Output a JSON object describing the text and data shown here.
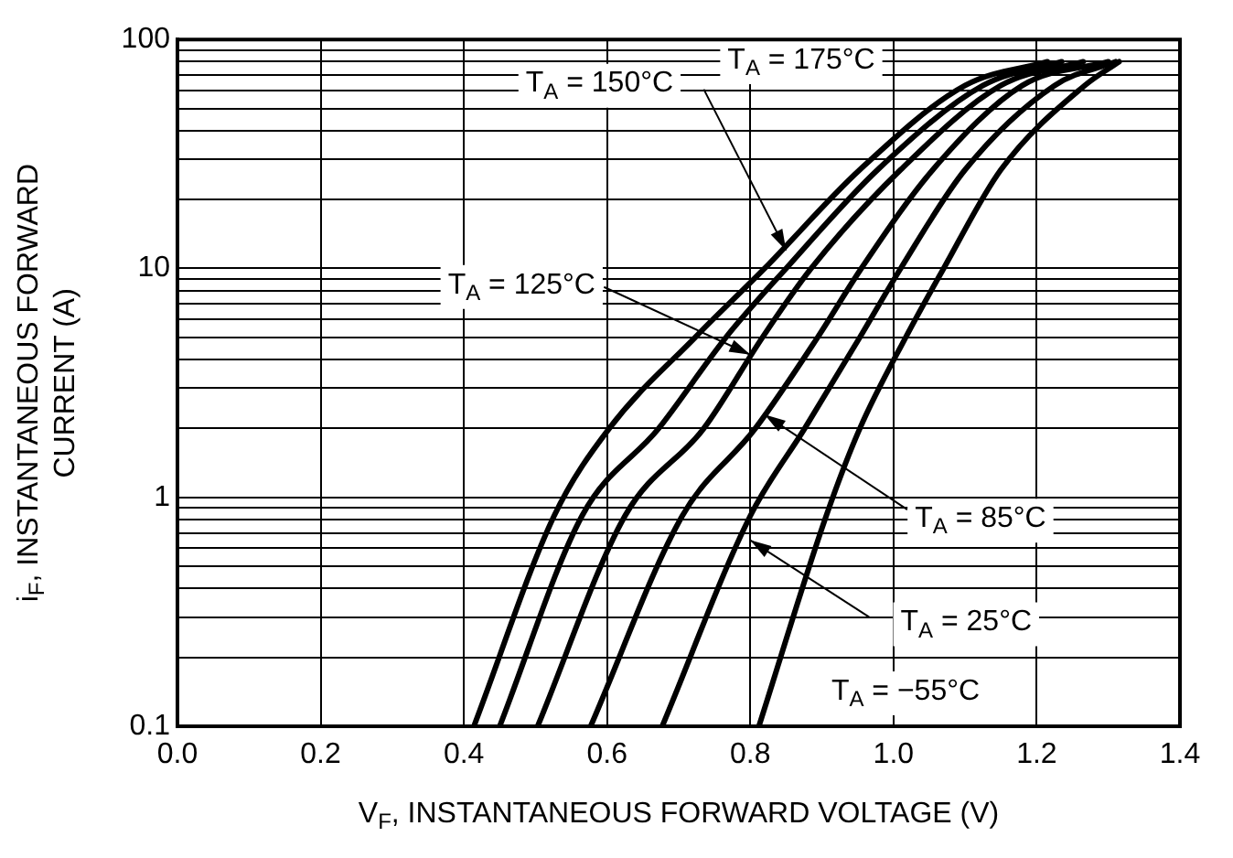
{
  "chart_data": {
    "type": "line",
    "xlabel": "V$_{F}$, INSTANTANEOUS FORWARD VOLTAGE (V)",
    "ylabel": "i$_{F}$, INSTANTANEOUS FORWARD CURRENT (A)",
    "log": "y",
    "grid": true,
    "legend": false,
    "marker": "none",
    "line_style": "solid",
    "xlim": [
      0,
      1.4
    ],
    "ylim": [
      0.1,
      100
    ],
    "xticks": [
      {
        "value": 0,
        "label": "0.0"
      },
      0.2,
      0.4,
      0.6,
      0.8,
      {
        "value": 1,
        "label": "1.0"
      },
      1.2,
      1.4
    ],
    "yticks": [
      0.1,
      {
        "value": 0.2,
        "label": null
      },
      {
        "value": 0.3,
        "label": null
      },
      {
        "value": 0.4,
        "label": null
      },
      {
        "value": 0.5,
        "label": null
      },
      {
        "value": 0.6,
        "label": null
      },
      {
        "value": 0.7,
        "label": null
      },
      {
        "value": 0.8,
        "label": null
      },
      {
        "value": 0.9,
        "label": null
      },
      1,
      {
        "value": 2,
        "label": null
      },
      {
        "value": 3,
        "label": null
      },
      {
        "value": 4,
        "label": null
      },
      {
        "value": 5,
        "label": null
      },
      {
        "value": 6,
        "label": null
      },
      {
        "value": 7,
        "label": null
      },
      {
        "value": 8,
        "label": null
      },
      {
        "value": 9,
        "label": null
      },
      10,
      {
        "value": 20,
        "label": null
      },
      {
        "value": 30,
        "label": null
      },
      {
        "value": 40,
        "label": null
      },
      {
        "value": 50,
        "label": null
      },
      {
        "value": 60,
        "label": null
      },
      {
        "value": 70,
        "label": null
      },
      {
        "value": 80,
        "label": null
      },
      {
        "value": 90,
        "label": null
      },
      100
    ],
    "annotations": [
      {
        "text": "T$_{A}$ = 150°C",
        "x": 0.85,
        "y": 12
      },
      {
        "text": "T$_{A}$ = 125°C",
        "x": 0.8,
        "y": 4.2
      },
      {
        "text": "T$_{A}$ = 85°C",
        "x": 0.82,
        "y": 2.3
      },
      {
        "text": "T$_{A}$ = 25°C",
        "x": 0.8,
        "y": 0.65
      }
    ],
    "series": [
      {
        "name": "T$_{A}$ = 175°C",
        "color": "#000000",
        "x": [
          0.414,
          0.526,
          0.603,
          0.723,
          0.82,
          0.953,
          1.1,
          1.215
        ],
        "values": [
          0.1,
          0.83,
          2,
          5,
          10,
          27,
          63,
          80
        ]
      },
      {
        "color": "#000000",
        "x": [
          0.45,
          0.565,
          0.672,
          0.766,
          0.85,
          0.978,
          1.125,
          1.235
        ],
        "values": [
          0.1,
          0.83,
          2,
          5,
          10,
          27,
          63,
          80
        ]
      },
      {
        "color": "#000000",
        "x": [
          0.503,
          0.625,
          0.735,
          0.817,
          0.885,
          1.01,
          1.15,
          1.265
        ],
        "values": [
          0.1,
          0.83,
          2,
          5,
          10,
          27,
          63,
          80
        ]
      },
      {
        "color": "#000000",
        "x": [
          0.577,
          0.705,
          0.807,
          0.894,
          0.955,
          1.055,
          1.18,
          1.3
        ],
        "values": [
          0.1,
          0.83,
          2,
          5,
          10,
          27,
          63,
          80
        ]
      },
      {
        "color": "#000000",
        "x": [
          0.677,
          0.8,
          0.876,
          0.953,
          1.01,
          1.1,
          1.225,
          1.31
        ],
        "values": [
          0.1,
          0.83,
          2,
          5,
          10,
          27,
          63,
          80
        ]
      },
      {
        "name": "T$_{A}$ = −55°C",
        "color": "#000000",
        "x": [
          0.812,
          0.906,
          0.953,
          1.017,
          1.07,
          1.15,
          1.267,
          1.315
        ],
        "values": [
          0.1,
          0.83,
          2,
          5,
          10,
          27,
          63,
          80
        ]
      }
    ]
  }
}
